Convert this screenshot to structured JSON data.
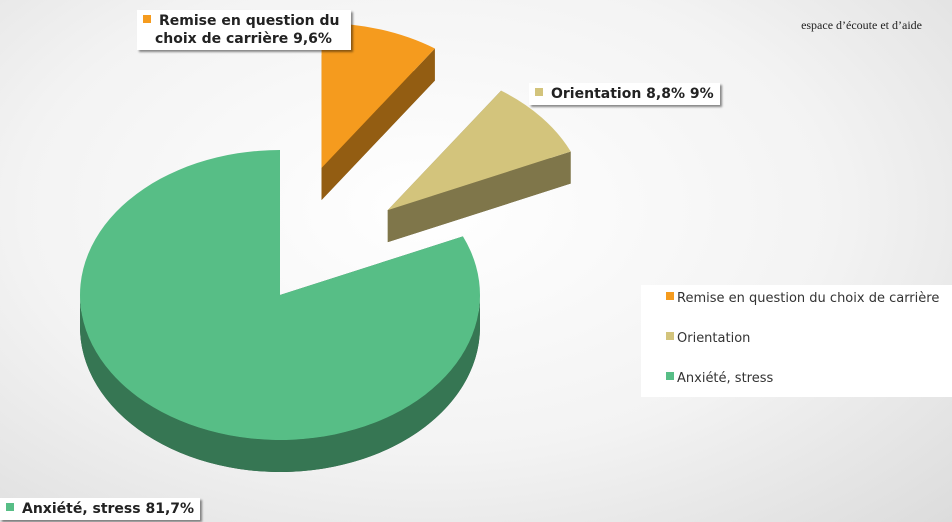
{
  "header": {
    "tagline": "espace d’écoute et d’aide"
  },
  "chart_data": {
    "type": "pie3d",
    "categories": [
      "Remise en question du choix de carrière",
      "Orientation",
      "Anxiété, stress"
    ],
    "values": [
      9.6,
      8.8,
      81.7
    ],
    "value_labels": [
      "9,6%",
      "8,8% 9%",
      "81,7%"
    ],
    "colors": [
      "#f59b1e",
      "#d3c47c",
      "#57be86"
    ],
    "exploded": [
      true,
      true,
      false
    ],
    "legend": "right"
  }
}
